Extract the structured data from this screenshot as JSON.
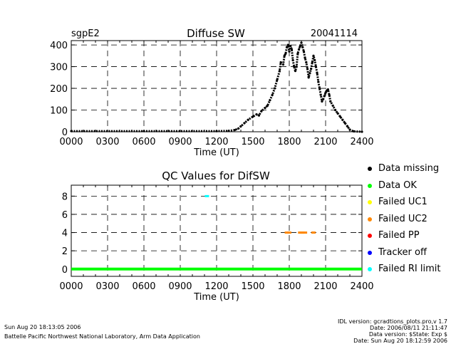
{
  "header": {
    "station": "sgpE2",
    "title": "Diffuse SW",
    "date": "20041114"
  },
  "qc_title": "QC Values for DifSW",
  "legend": [
    {
      "label": "Data missing",
      "color": "#000000"
    },
    {
      "label": "Data OK",
      "color": "#00ff00"
    },
    {
      "label": "Failed UC1",
      "color": "#ffff00"
    },
    {
      "label": "Failed UC2",
      "color": "#ff8800"
    },
    {
      "label": "Failed PP",
      "color": "#ff0000"
    },
    {
      "label": "Tracker off",
      "color": "#0000ff"
    },
    {
      "label": "Failed RI limit",
      "color": "#00ffff"
    }
  ],
  "footer": {
    "left_line1": "Sun Aug 20 18:13:05 2006",
    "left_line2": "Battelle Pacific Northwest National Laboratory, Arm Data Application",
    "right_lines": [
      "IDL version: gcradtions_plots.pro,v 1.7",
      "Date: 2006/08/11 21:11:47",
      "Data version: $State: Exp $",
      "Date: Sun Aug 20 18:12:59 2006"
    ]
  },
  "chart_data": [
    {
      "type": "scatter",
      "title": "Diffuse SW",
      "xlabel": "Time (UT)",
      "ylabel": "",
      "x_ticks": [
        "0000",
        "0300",
        "0600",
        "0900",
        "1200",
        "1500",
        "1800",
        "2100",
        "2400"
      ],
      "y_ticks": [
        "0",
        "100",
        "200",
        "300",
        "400"
      ],
      "xlim": [
        0,
        24
      ],
      "ylim": [
        0,
        420
      ],
      "grid": true,
      "series": [
        {
          "color": "#000000",
          "x": [
            0.0,
            6.0,
            12.0,
            13.0,
            13.5,
            13.8,
            14.0,
            14.3,
            14.6,
            15.0,
            15.3,
            15.5,
            15.7,
            16.0,
            16.2,
            16.4,
            16.6,
            16.8,
            17.0,
            17.2,
            17.3,
            17.5,
            17.6,
            17.7,
            17.8,
            17.9,
            18.0,
            18.1,
            18.2,
            18.3,
            18.4,
            18.5,
            18.6,
            18.7,
            18.8,
            18.9,
            19.0,
            19.1,
            19.2,
            19.3,
            19.4,
            19.5,
            19.6,
            19.7,
            19.8,
            19.9,
            20.0,
            20.1,
            20.2,
            20.3,
            20.4,
            20.5,
            20.6,
            20.7,
            20.8,
            20.9,
            21.0,
            21.1,
            21.2,
            21.3,
            21.4,
            21.6,
            21.8,
            22.0,
            22.2,
            22.4,
            22.6,
            22.8,
            23.0,
            23.3,
            24.0
          ],
          "y": [
            3,
            3,
            3,
            4,
            8,
            15,
            25,
            40,
            55,
            70,
            80,
            75,
            95,
            110,
            120,
            145,
            170,
            200,
            240,
            280,
            320,
            310,
            350,
            360,
            390,
            400,
            370,
            395,
            380,
            330,
            300,
            280,
            300,
            360,
            380,
            395,
            410,
            390,
            370,
            340,
            320,
            290,
            250,
            270,
            290,
            320,
            350,
            330,
            300,
            270,
            230,
            200,
            170,
            140,
            150,
            165,
            180,
            190,
            195,
            170,
            140,
            120,
            100,
            85,
            70,
            55,
            40,
            25,
            10,
            2,
            0
          ]
        }
      ]
    },
    {
      "type": "scatter",
      "title": "QC Values for DifSW",
      "xlabel": "Time (UT)",
      "ylabel": "",
      "x_ticks": [
        "0000",
        "0300",
        "0600",
        "0900",
        "1200",
        "1500",
        "1800",
        "2100",
        "2400"
      ],
      "y_ticks": [
        "0",
        "2",
        "4",
        "6",
        "8"
      ],
      "xlim": [
        0,
        24
      ],
      "ylim": [
        -0.8,
        9.2
      ],
      "grid": true,
      "series": [
        {
          "color": "#00ff00",
          "x": [
            0,
            24
          ],
          "y": [
            0,
            0
          ],
          "mode": "solid"
        },
        {
          "color": "#00ffff",
          "x": [
            11.2
          ],
          "y": [
            8
          ]
        },
        {
          "color": "#ff8800",
          "x": [
            17.8,
            18.0,
            18.9,
            19.0,
            19.1,
            19.3,
            20.0
          ],
          "y": [
            4,
            4,
            4,
            4,
            4,
            4,
            4
          ]
        }
      ]
    }
  ]
}
